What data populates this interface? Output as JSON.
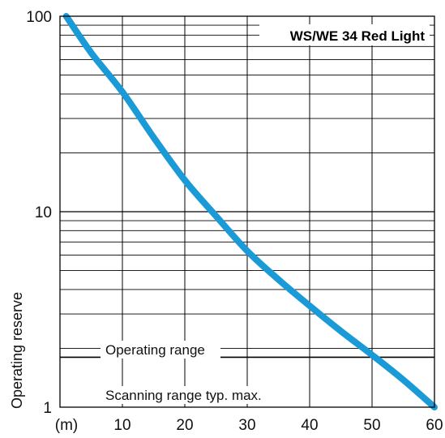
{
  "chart_data": {
    "type": "line",
    "title": "WS/WE 34 Red Light",
    "xlabel": "",
    "ylabel": "Operating reserve",
    "x_unit_label": "(m)",
    "xlim": [
      0,
      60
    ],
    "ylim": [
      1,
      100
    ],
    "y_scale": "log",
    "x_ticks": [
      10,
      20,
      30,
      40,
      50,
      60
    ],
    "y_ticks": [
      1,
      10,
      100
    ],
    "grid": true,
    "series": [
      {
        "color": "#1a9ad6",
        "x": [
          1,
          5,
          10,
          15,
          20,
          25,
          30,
          35,
          40,
          45,
          50,
          55,
          60
        ],
        "y": [
          100,
          65,
          41,
          24,
          14.5,
          9.5,
          6.3,
          4.5,
          3.3,
          2.45,
          1.85,
          1.38,
          1.0
        ]
      }
    ],
    "annotations": {
      "operating_range_label": "Operating range",
      "operating_range_y": 1.8,
      "scanning_range_label": "Scanning range typ. max."
    }
  }
}
